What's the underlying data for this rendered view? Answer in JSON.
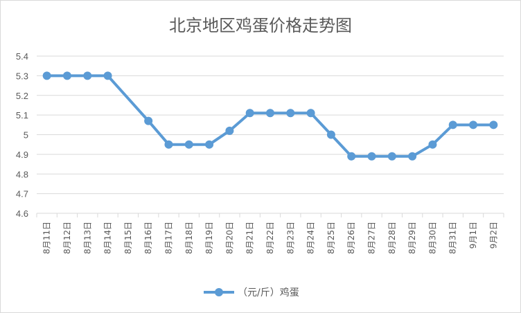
{
  "chart_data": {
    "type": "line",
    "title": "北京地区鸡蛋价格走势图",
    "categories": [
      "8月11日",
      "8月12日",
      "8月13日",
      "8月14日",
      "8月15日",
      "8月16日",
      "8月17日",
      "8月18日",
      "8月19日",
      "8月20日",
      "8月21日",
      "8月22日",
      "8月23日",
      "8月24日",
      "8月25日",
      "8月26日",
      "8月27日",
      "8月28日",
      "8月29日",
      "8月30日",
      "8月31日",
      "9月1日",
      "9月2日"
    ],
    "series": [
      {
        "name": "（元/斤）鸡蛋",
        "values": [
          5.3,
          5.3,
          5.3,
          5.3,
          null,
          5.07,
          4.95,
          4.95,
          4.95,
          5.02,
          5.11,
          5.11,
          5.11,
          5.11,
          5.0,
          4.89,
          4.89,
          4.89,
          4.89,
          4.95,
          5.05,
          5.05,
          5.05
        ],
        "color": "#5b9bd5"
      }
    ],
    "yticks": [
      "4.6",
      "4.7",
      "4.8",
      "4.9",
      "5",
      "5.1",
      "5.2",
      "5.3",
      "5.4"
    ],
    "ylim": [
      4.6,
      5.4
    ],
    "grid": true,
    "legend_position": "bottom"
  }
}
